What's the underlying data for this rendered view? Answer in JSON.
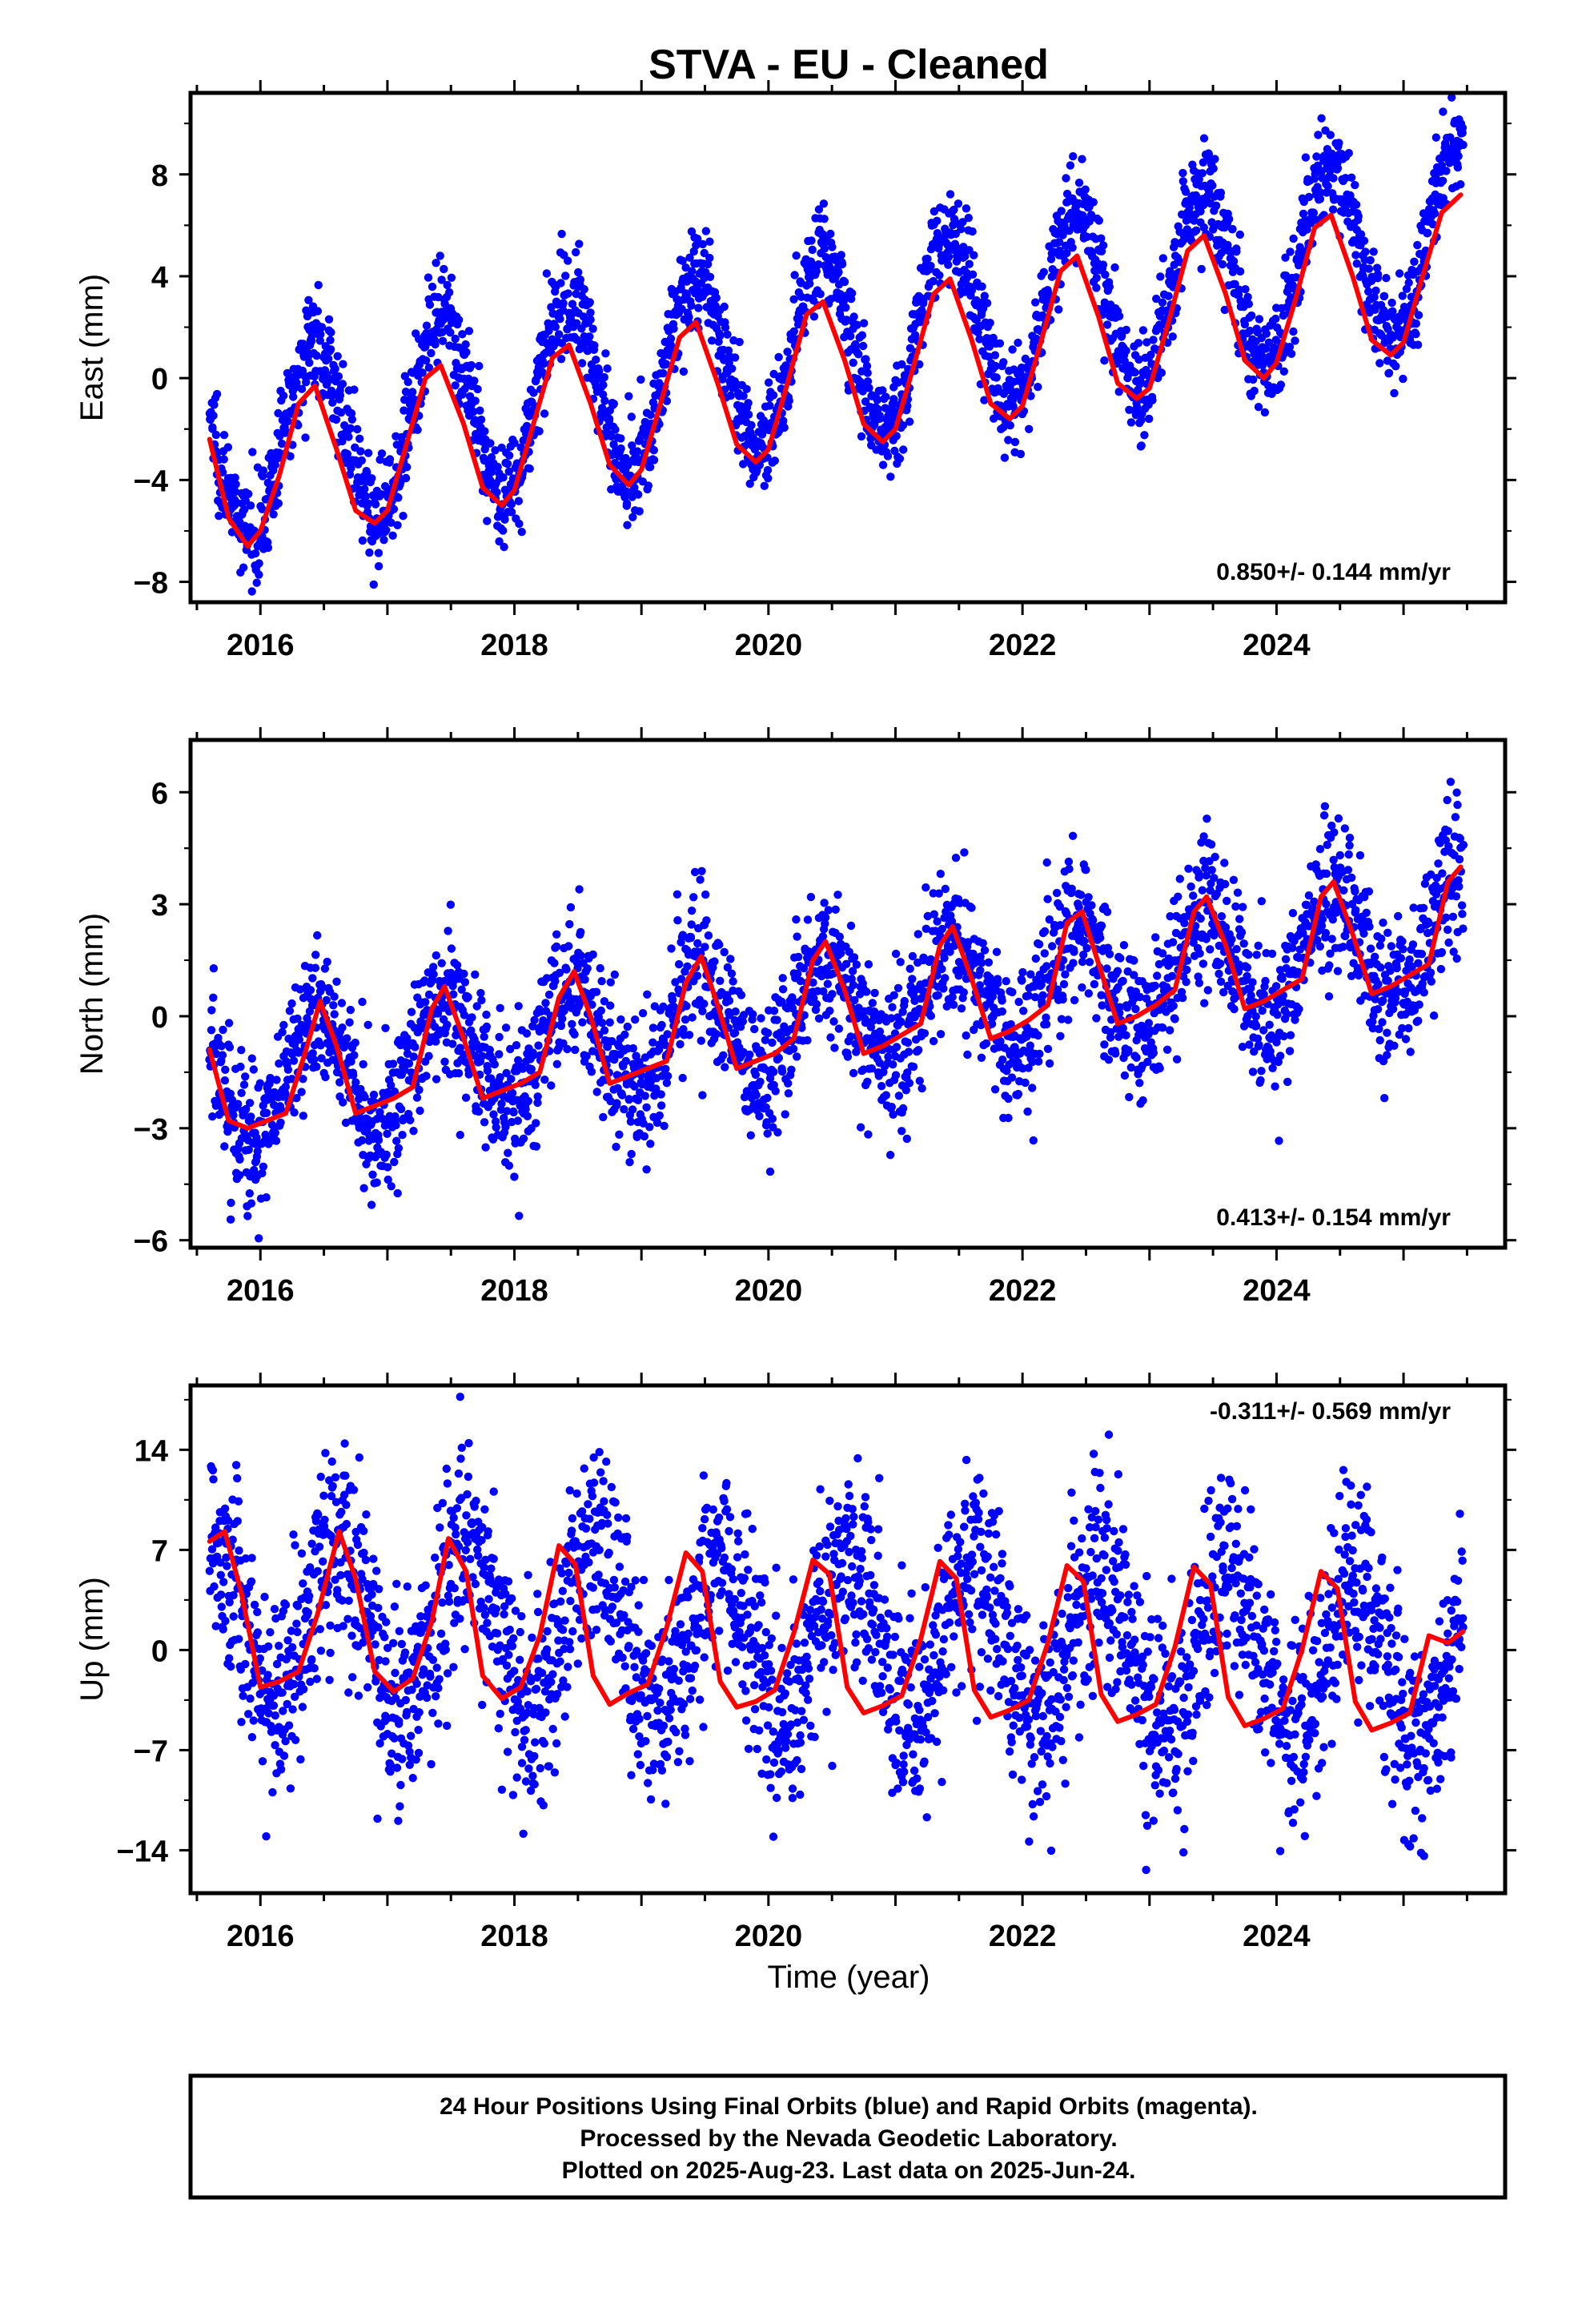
{
  "figure": {
    "title": "STVA  - EU - Cleaned",
    "xlabel": "Time (year)",
    "caption": [
      "24 Hour Positions Using Final Orbits (blue) and Rapid Orbits (magenta).",
      "Processed by the Nevada Geodetic Laboratory.",
      "Plotted on 2025-Aug-23. Last data on 2025-Jun-24."
    ]
  },
  "colors": {
    "final_orbit_points": "#0000ff",
    "model_fit": "#ff0000",
    "frame": "#000000"
  },
  "chart_data": [
    {
      "type": "scatter",
      "ylabel": "East (mm)",
      "rate_text": "0.850+/- 0.144 mm/yr",
      "rate_position": "bottom-right",
      "xlim": [
        2015.45,
        2025.8
      ],
      "ylim": [
        -8.8,
        11.2
      ],
      "xticks": [
        "2016",
        "2018",
        "2020",
        "2022",
        "2024"
      ],
      "xtick_values": [
        2016,
        2018,
        2020,
        2022,
        2024
      ],
      "yticks": [
        "−8",
        "−4",
        "0",
        "4",
        "8"
      ],
      "ytick_values": [
        -8,
        -4,
        0,
        4,
        8
      ],
      "grid": false,
      "series": [
        {
          "kind": "points",
          "color": "#0000ff",
          "start": 2015.6,
          "end": 2025.47,
          "count": 2800,
          "trend_at_start": -2.9,
          "trend_rate": 0.85,
          "annual_amplitude": 3.6,
          "annual_peak_phase": 0.42,
          "noise_sd": 1.0
        },
        {
          "kind": "fit-line",
          "color": "#ff0000",
          "x": [
            2015.6,
            2015.75,
            2015.9,
            2016.0,
            2016.15,
            2016.3,
            2016.43,
            2016.6,
            2016.75,
            2016.9,
            2017.0,
            2017.15,
            2017.3,
            2017.42,
            2017.6,
            2017.75,
            2017.9,
            2018.0,
            2018.15,
            2018.3,
            2018.43,
            2018.6,
            2018.75,
            2018.9,
            2019.0,
            2019.15,
            2019.3,
            2019.43,
            2019.6,
            2019.75,
            2019.9,
            2020.0,
            2020.15,
            2020.3,
            2020.43,
            2020.6,
            2020.75,
            2020.9,
            2021.0,
            2021.15,
            2021.3,
            2021.43,
            2021.6,
            2021.75,
            2021.9,
            2022.0,
            2022.15,
            2022.3,
            2022.43,
            2022.6,
            2022.75,
            2022.9,
            2023.0,
            2023.15,
            2023.3,
            2023.43,
            2023.6,
            2023.75,
            2023.9,
            2024.0,
            2024.15,
            2024.3,
            2024.43,
            2024.6,
            2024.75,
            2024.9,
            2025.0,
            2025.15,
            2025.3,
            2025.45
          ],
          "y": [
            -2.4,
            -5.5,
            -6.6,
            -6.0,
            -3.8,
            -1.0,
            -0.3,
            -2.8,
            -5.2,
            -5.7,
            -5.2,
            -2.6,
            0.0,
            0.5,
            -1.8,
            -4.3,
            -5.0,
            -4.4,
            -1.8,
            0.8,
            1.3,
            -1.0,
            -3.4,
            -4.2,
            -3.6,
            -1.0,
            1.6,
            2.2,
            -0.2,
            -2.6,
            -3.3,
            -2.8,
            -0.2,
            2.5,
            3.0,
            0.7,
            -1.8,
            -2.5,
            -2.0,
            0.6,
            3.3,
            3.9,
            1.5,
            -1.0,
            -1.6,
            -1.1,
            1.5,
            4.2,
            4.8,
            2.4,
            -0.2,
            -0.8,
            -0.4,
            2.2,
            5.0,
            5.6,
            3.3,
            0.7,
            0.0,
            0.6,
            3.1,
            5.9,
            6.4,
            4.0,
            1.5,
            0.9,
            1.4,
            4.0,
            6.5,
            7.2
          ]
        }
      ]
    },
    {
      "type": "scatter",
      "ylabel": "North (mm)",
      "rate_text": "0.413+/- 0.154 mm/yr",
      "rate_position": "bottom-right",
      "xlim": [
        2015.45,
        2025.8
      ],
      "ylim": [
        -6.2,
        7.4
      ],
      "xticks": [
        "2016",
        "2018",
        "2020",
        "2022",
        "2024"
      ],
      "xtick_values": [
        2016,
        2018,
        2020,
        2022,
        2024
      ],
      "yticks": [
        "−6",
        "−3",
        "0",
        "3",
        "6"
      ],
      "ytick_values": [
        -6,
        -3,
        0,
        3,
        6
      ],
      "grid": false,
      "series": [
        {
          "kind": "points",
          "color": "#0000ff",
          "start": 2015.6,
          "end": 2025.47,
          "count": 2800,
          "trend_at_start": -1.9,
          "trend_rate": 0.41,
          "annual_amplitude": 1.5,
          "annual_peak_phase": 0.45,
          "noise_sd": 1.0
        },
        {
          "kind": "fit-line",
          "color": "#ff0000",
          "x": [
            2015.6,
            2015.75,
            2015.9,
            2016.05,
            2016.2,
            2016.35,
            2016.47,
            2016.6,
            2016.75,
            2016.9,
            2017.05,
            2017.2,
            2017.35,
            2017.45,
            2017.6,
            2017.75,
            2017.9,
            2018.05,
            2018.2,
            2018.35,
            2018.47,
            2018.6,
            2018.75,
            2018.9,
            2019.05,
            2019.2,
            2019.35,
            2019.47,
            2019.6,
            2019.75,
            2019.9,
            2020.05,
            2020.2,
            2020.35,
            2020.45,
            2020.6,
            2020.75,
            2020.9,
            2021.05,
            2021.2,
            2021.35,
            2021.45,
            2021.6,
            2021.75,
            2021.9,
            2022.05,
            2022.2,
            2022.35,
            2022.47,
            2022.6,
            2022.75,
            2022.9,
            2023.05,
            2023.2,
            2023.35,
            2023.45,
            2023.6,
            2023.75,
            2023.9,
            2024.05,
            2024.2,
            2024.35,
            2024.45,
            2024.6,
            2024.75,
            2024.9,
            2025.05,
            2025.2,
            2025.35,
            2025.45
          ],
          "y": [
            -0.9,
            -2.8,
            -3.0,
            -2.8,
            -2.6,
            -1.0,
            0.4,
            -0.8,
            -2.6,
            -2.4,
            -2.2,
            -1.9,
            0.2,
            0.8,
            -0.6,
            -2.2,
            -2.0,
            -1.8,
            -1.5,
            0.5,
            1.2,
            0.0,
            -1.8,
            -1.6,
            -1.4,
            -1.2,
            0.9,
            1.6,
            0.3,
            -1.4,
            -1.2,
            -1.0,
            -0.6,
            1.5,
            2.0,
            0.7,
            -1.0,
            -0.8,
            -0.5,
            -0.2,
            1.9,
            2.4,
            1.0,
            -0.6,
            -0.4,
            -0.1,
            0.3,
            2.5,
            2.8,
            1.4,
            -0.2,
            0.0,
            0.3,
            0.7,
            2.8,
            3.2,
            1.9,
            0.2,
            0.4,
            0.7,
            1.0,
            3.2,
            3.6,
            2.2,
            0.6,
            0.8,
            1.1,
            1.4,
            3.6,
            4.0
          ]
        }
      ]
    },
    {
      "type": "scatter",
      "ylabel": "Up (mm)",
      "rate_text": "-0.311+/- 0.569 mm/yr",
      "rate_position": "top-right",
      "xlim": [
        2015.45,
        2025.8
      ],
      "ylim": [
        -17.0,
        18.5
      ],
      "xticks": [
        "2016",
        "2018",
        "2020",
        "2022",
        "2024"
      ],
      "xtick_values": [
        2016,
        2018,
        2020,
        2022,
        2024
      ],
      "yticks": [
        "−14",
        "−7",
        "0",
        "7",
        "14"
      ],
      "ytick_values": [
        -14,
        -7,
        0,
        7,
        14
      ],
      "grid": false,
      "series": [
        {
          "kind": "points",
          "color": "#0000ff",
          "start": 2015.6,
          "end": 2025.47,
          "count": 2800,
          "trend_at_start": 2.3,
          "trend_rate": -0.31,
          "annual_amplitude": 5.5,
          "annual_peak_phase": 0.62,
          "noise_sd": 3.6
        },
        {
          "kind": "fit-line",
          "color": "#ff0000",
          "x": [
            2015.6,
            2015.72,
            2015.85,
            2016.0,
            2016.15,
            2016.3,
            2016.45,
            2016.62,
            2016.75,
            2016.9,
            2017.05,
            2017.2,
            2017.35,
            2017.48,
            2017.62,
            2017.75,
            2017.9,
            2018.05,
            2018.2,
            2018.35,
            2018.48,
            2018.62,
            2018.75,
            2018.9,
            2019.05,
            2019.2,
            2019.35,
            2019.48,
            2019.62,
            2019.75,
            2019.9,
            2020.05,
            2020.2,
            2020.35,
            2020.48,
            2020.62,
            2020.75,
            2020.9,
            2021.05,
            2021.2,
            2021.35,
            2021.48,
            2021.62,
            2021.75,
            2021.9,
            2022.05,
            2022.2,
            2022.35,
            2022.48,
            2022.62,
            2022.75,
            2022.9,
            2023.05,
            2023.2,
            2023.35,
            2023.48,
            2023.62,
            2023.75,
            2023.9,
            2024.05,
            2024.2,
            2024.35,
            2024.48,
            2024.62,
            2024.75,
            2024.9,
            2025.05,
            2025.2,
            2025.35,
            2025.47
          ],
          "y": [
            7.6,
            8.3,
            4.0,
            -2.6,
            -2.2,
            -1.5,
            2.5,
            8.3,
            5.0,
            -1.5,
            -2.9,
            -2.0,
            2.0,
            7.8,
            5.5,
            -1.8,
            -3.4,
            -2.6,
            1.0,
            7.3,
            6.0,
            -1.8,
            -3.8,
            -3.0,
            -2.4,
            1.6,
            6.8,
            5.5,
            -2.2,
            -4.0,
            -3.6,
            -2.8,
            1.2,
            6.3,
            5.3,
            -2.6,
            -4.4,
            -3.9,
            -3.2,
            0.8,
            6.2,
            5.0,
            -2.8,
            -4.7,
            -4.2,
            -3.5,
            0.5,
            5.9,
            4.8,
            -3.1,
            -5.0,
            -4.5,
            -3.8,
            0.2,
            5.8,
            4.6,
            -3.3,
            -5.3,
            -4.8,
            -4.1,
            0.0,
            5.5,
            4.3,
            -3.6,
            -5.6,
            -5.1,
            -4.4,
            1.0,
            0.5,
            1.3
          ]
        }
      ]
    }
  ]
}
